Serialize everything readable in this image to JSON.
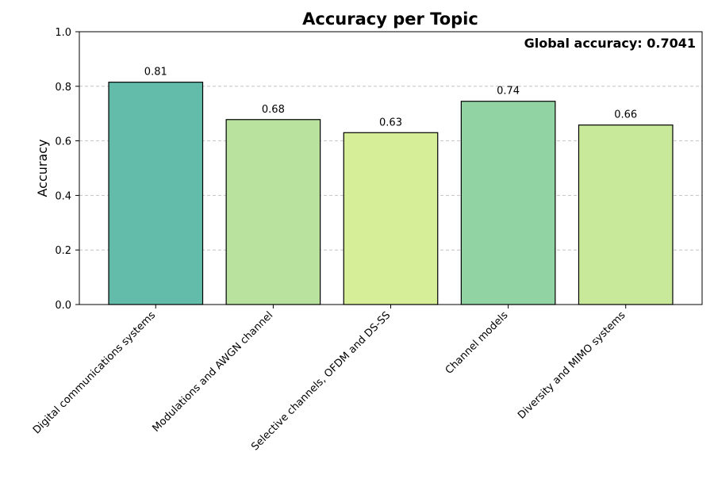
{
  "chart_data": {
    "type": "bar",
    "title": "Accuracy per Topic",
    "xlabel": "",
    "ylabel": "Accuracy",
    "ylim": [
      0,
      1.0
    ],
    "yticks": [
      0.0,
      0.2,
      0.4,
      0.6,
      0.8,
      1.0
    ],
    "ytick_labels": [
      "0.0",
      "0.2",
      "0.4",
      "0.6",
      "0.8",
      "1.0"
    ],
    "grid": "y-dashed",
    "categories": [
      "Digital communications systems",
      "Modulations and AWGN channel",
      "Selective channels, OFDM and DS-SS",
      "Channel models",
      "Diversity and MIMO systems"
    ],
    "values": [
      0.815,
      0.678,
      0.63,
      0.745,
      0.658
    ],
    "value_labels": [
      "0.81",
      "0.68",
      "0.63",
      "0.74",
      "0.66"
    ],
    "bar_colors": [
      "#62bca9",
      "#b8e29e",
      "#d7ee98",
      "#92d3a3",
      "#c8e89a"
    ],
    "annotation": "Global accuracy: 0.7041"
  }
}
